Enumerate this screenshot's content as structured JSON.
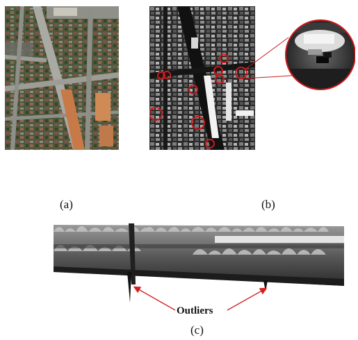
{
  "figure": {
    "captions": {
      "a": "(a)",
      "b": "(b)",
      "c": "(c)"
    },
    "annotation": {
      "outliers": "Outliers"
    },
    "colors": {
      "marker": "#cc1a1a",
      "arrow": "#d42020"
    },
    "panels": [
      {
        "id": "a",
        "content": "aerial-color-image"
      },
      {
        "id": "b",
        "content": "grayscale-elevation-map-with-circled-outliers"
      },
      {
        "id": "c",
        "content": "3d-surface-view-with-downward-spikes"
      }
    ]
  }
}
